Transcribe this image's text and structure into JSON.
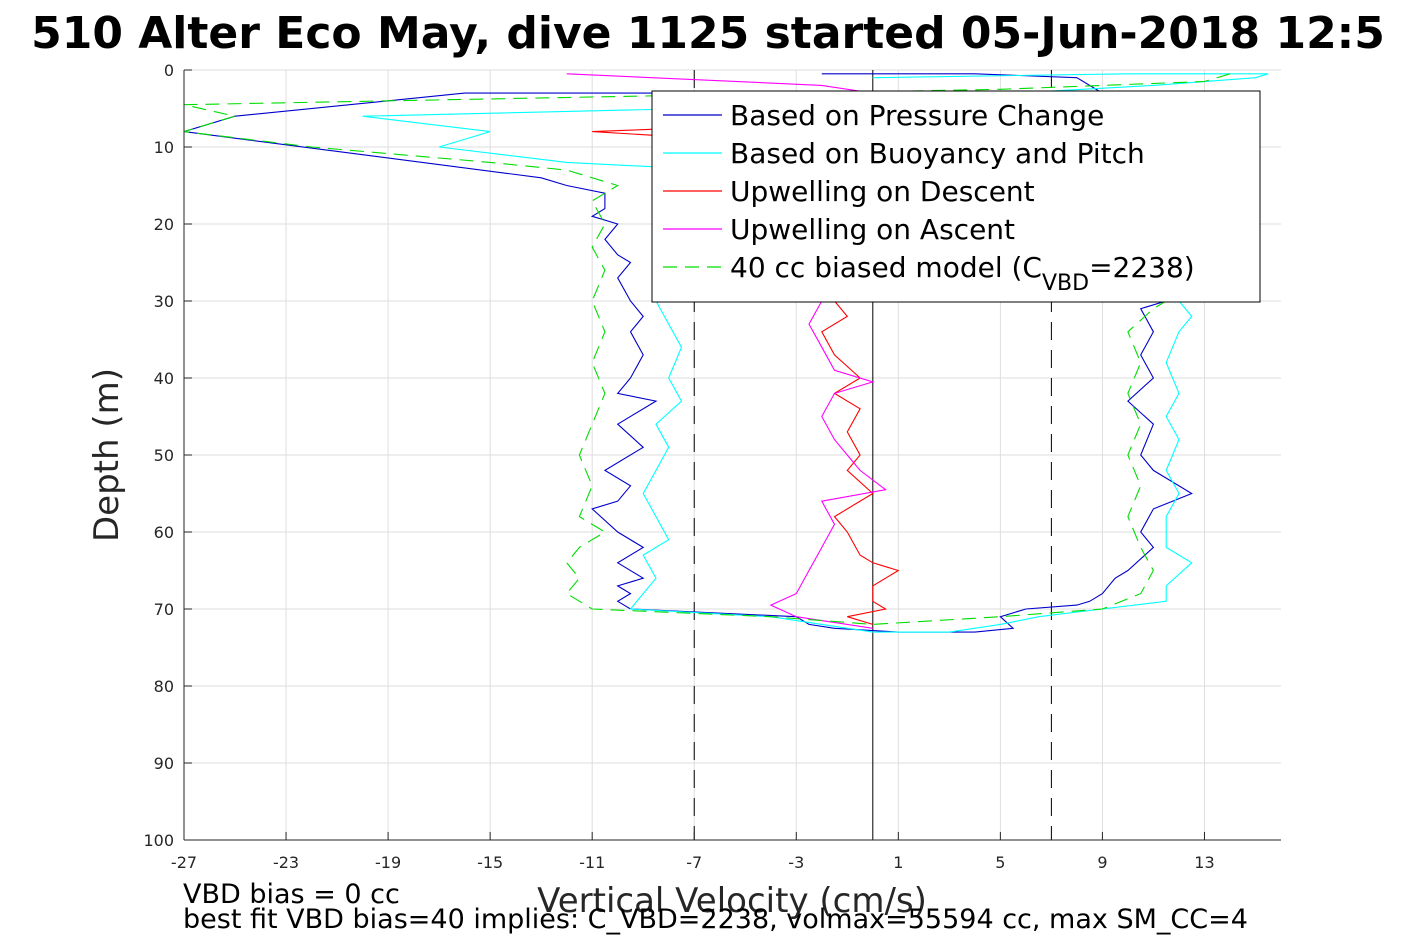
{
  "chart_data": {
    "type": "line",
    "title": "510 Alter Eco May, dive 1125 started 05-Jun-2018 12:5",
    "xlabel": "Vertical Velocity (cm/s)",
    "ylabel": "Depth (m)",
    "xlim": [
      -27,
      16
    ],
    "ylim": [
      0,
      100
    ],
    "y_reversed": true,
    "grid": true,
    "legend_placement": "top-right",
    "x_ticks": [
      "-27",
      "-23",
      "-19",
      "-15",
      "-11",
      "-7",
      "-3",
      "1",
      "5",
      "9",
      "13"
    ],
    "y_ticks": [
      "0",
      "10",
      "20",
      "30",
      "40",
      "50",
      "60",
      "70",
      "80",
      "90",
      "100"
    ],
    "reference_lines": [
      {
        "x": 0,
        "style": "solid",
        "color": "#000000"
      },
      {
        "x": -7,
        "style": "dashed",
        "color": "#000000"
      },
      {
        "x": 7,
        "style": "dashed",
        "color": "#000000"
      }
    ],
    "series": [
      {
        "name": "Based on Pressure Change",
        "color": "#0000cc",
        "style": "solid",
        "points": [
          [
            -2,
            0.5
          ],
          [
            0,
            0.5
          ],
          [
            4,
            0.5
          ],
          [
            8,
            1
          ],
          [
            9,
            3
          ],
          [
            -16,
            3
          ],
          [
            -25,
            6
          ],
          [
            -27,
            8
          ],
          [
            -20,
            11
          ],
          [
            -13,
            14
          ],
          [
            -12,
            15
          ],
          [
            -10.5,
            16
          ],
          [
            -10.5,
            18
          ],
          [
            -11,
            19
          ],
          [
            -10,
            20
          ],
          [
            -10.5,
            22
          ],
          [
            -10,
            24
          ],
          [
            -9.5,
            25
          ],
          [
            -10,
            27
          ],
          [
            -9.5,
            30
          ],
          [
            -9,
            32
          ],
          [
            -9.5,
            34
          ],
          [
            -9,
            37
          ],
          [
            -9.5,
            40
          ],
          [
            -10,
            42
          ],
          [
            -8.5,
            43
          ],
          [
            -10,
            46
          ],
          [
            -9,
            49
          ],
          [
            -10.5,
            52
          ],
          [
            -9.5,
            54
          ],
          [
            -10,
            56
          ],
          [
            -11,
            57
          ],
          [
            -10,
            60
          ],
          [
            -9,
            62
          ],
          [
            -10,
            64
          ],
          [
            -9,
            66
          ],
          [
            -10,
            67
          ],
          [
            -9.5,
            68
          ],
          [
            -10,
            69
          ],
          [
            -9.5,
            70
          ],
          [
            -3,
            71
          ],
          [
            -2.5,
            72
          ],
          [
            -1.5,
            72.5
          ],
          [
            1,
            73
          ],
          [
            4,
            73
          ],
          [
            5.5,
            72.5
          ],
          [
            5,
            71
          ],
          [
            6,
            70
          ],
          [
            8,
            69.5
          ],
          [
            8.5,
            69
          ],
          [
            9,
            68
          ],
          [
            9.5,
            66
          ],
          [
            10,
            65
          ],
          [
            11,
            62
          ],
          [
            10.5,
            60
          ],
          [
            11,
            57
          ],
          [
            12.5,
            55
          ],
          [
            11,
            52
          ],
          [
            10.5,
            50
          ],
          [
            11,
            46
          ],
          [
            10,
            43
          ],
          [
            11,
            40
          ],
          [
            10.5,
            37
          ],
          [
            11,
            34
          ],
          [
            10.5,
            31
          ],
          [
            11.5,
            30
          ]
        ]
      },
      {
        "name": "Based on Buoyancy and Pitch",
        "color": "#00ffff",
        "style": "solid",
        "points": [
          [
            0,
            1
          ],
          [
            10,
            0.5
          ],
          [
            15.5,
            0.5
          ],
          [
            15,
            1
          ],
          [
            11,
            2
          ],
          [
            0,
            4
          ],
          [
            -7,
            5
          ],
          [
            -20,
            6
          ],
          [
            -15,
            8
          ],
          [
            -17,
            10
          ],
          [
            -12,
            12
          ],
          [
            -6,
            13
          ],
          [
            -5,
            15
          ],
          [
            -6,
            17
          ],
          [
            -6,
            20
          ],
          [
            -7.5,
            22
          ],
          [
            -8.5,
            23
          ],
          [
            -8.5,
            25
          ],
          [
            -8,
            27
          ],
          [
            -8.5,
            30
          ],
          [
            -8,
            33
          ],
          [
            -7.5,
            36
          ],
          [
            -8,
            40
          ],
          [
            -7.5,
            43
          ],
          [
            -8.5,
            46
          ],
          [
            -8,
            49
          ],
          [
            -8.5,
            52
          ],
          [
            -9,
            55
          ],
          [
            -8.5,
            58
          ],
          [
            -8,
            61
          ],
          [
            -9,
            63
          ],
          [
            -8.5,
            66
          ],
          [
            -9,
            68
          ],
          [
            -9.5,
            70
          ],
          [
            -4,
            71
          ],
          [
            -2,
            72
          ],
          [
            0,
            73
          ],
          [
            3,
            73
          ],
          [
            5,
            72
          ],
          [
            6.5,
            71
          ],
          [
            9,
            70
          ],
          [
            11.5,
            69
          ],
          [
            11.5,
            67
          ],
          [
            12.5,
            64
          ],
          [
            11.5,
            62
          ],
          [
            11.5,
            58
          ],
          [
            12,
            55
          ],
          [
            11.5,
            52
          ],
          [
            12,
            48
          ],
          [
            11.5,
            45
          ],
          [
            12,
            42
          ],
          [
            11.5,
            38
          ],
          [
            12,
            34
          ],
          [
            12.5,
            32
          ],
          [
            12,
            30
          ]
        ]
      },
      {
        "name": "Upwelling on Descent",
        "color": "#ff0000",
        "style": "solid",
        "points": [
          [
            -4,
            4
          ],
          [
            -2,
            5
          ],
          [
            -3,
            7
          ],
          [
            -11,
            8
          ],
          [
            -6,
            9
          ],
          [
            -7,
            10
          ],
          [
            -1.5,
            30
          ],
          [
            -1,
            32
          ],
          [
            -2,
            34
          ],
          [
            -1.5,
            37
          ],
          [
            -0.5,
            40
          ],
          [
            -1.5,
            42
          ],
          [
            -0.5,
            44
          ],
          [
            -1,
            47
          ],
          [
            -0.5,
            50
          ],
          [
            -1,
            52
          ],
          [
            0,
            55
          ],
          [
            -1.5,
            58
          ],
          [
            -1,
            60
          ],
          [
            -0.5,
            63
          ],
          [
            0,
            64
          ],
          [
            1,
            65
          ],
          [
            0,
            67
          ],
          [
            0,
            69
          ],
          [
            0.5,
            70
          ],
          [
            -1,
            71
          ],
          [
            0,
            72
          ]
        ]
      },
      {
        "name": "Upwelling on Ascent",
        "color": "#ff00ff",
        "style": "solid",
        "points": [
          [
            -12,
            0.5
          ],
          [
            -2,
            2
          ],
          [
            0,
            3
          ],
          [
            -6,
            20
          ],
          [
            -2,
            30
          ],
          [
            -2.5,
            33
          ],
          [
            -2,
            36
          ],
          [
            -1.5,
            39
          ],
          [
            0,
            40.5
          ],
          [
            -1.5,
            42
          ],
          [
            -2,
            45
          ],
          [
            -1.5,
            48
          ],
          [
            -1,
            50
          ],
          [
            -0.5,
            52
          ],
          [
            0.5,
            54.5
          ],
          [
            -2,
            56
          ],
          [
            -1.5,
            59
          ],
          [
            -2,
            62
          ],
          [
            -2.5,
            65
          ],
          [
            -3,
            68
          ],
          [
            -4,
            69.5
          ],
          [
            -3,
            71
          ],
          [
            -1,
            72
          ],
          [
            0,
            72.5
          ]
        ]
      },
      {
        "name": "40 cc biased model (C",
        "name_sub": "VBD",
        "name_suffix": "=2238)",
        "color": "#00dd00",
        "style": "dashed",
        "points": [
          [
            14,
            0.5
          ],
          [
            13,
            1.5
          ],
          [
            5,
            2.5
          ],
          [
            -27,
            4.5
          ],
          [
            -25,
            6
          ],
          [
            -27,
            8
          ],
          [
            -22,
            10
          ],
          [
            -15,
            12
          ],
          [
            -12,
            13
          ],
          [
            -10,
            15
          ],
          [
            -11,
            17
          ],
          [
            -10.5,
            20
          ],
          [
            -11,
            23
          ],
          [
            -10.5,
            26
          ],
          [
            -11,
            30
          ],
          [
            -10.5,
            34
          ],
          [
            -11,
            38
          ],
          [
            -10.5,
            42
          ],
          [
            -11,
            46
          ],
          [
            -11.5,
            50
          ],
          [
            -11,
            54
          ],
          [
            -11.5,
            58
          ],
          [
            -10.5,
            60
          ],
          [
            -11.5,
            62
          ],
          [
            -12,
            64
          ],
          [
            -11.5,
            66
          ],
          [
            -12,
            68
          ],
          [
            -11,
            70
          ],
          [
            -4,
            71
          ],
          [
            0,
            72
          ],
          [
            5,
            71
          ],
          [
            9,
            70
          ],
          [
            10.5,
            68
          ],
          [
            11,
            65
          ],
          [
            10.5,
            62
          ],
          [
            10,
            58
          ],
          [
            10.5,
            54
          ],
          [
            10,
            50
          ],
          [
            10.5,
            46
          ],
          [
            10,
            42
          ],
          [
            10.5,
            38
          ],
          [
            10,
            34
          ],
          [
            11,
            31
          ],
          [
            11.5,
            30
          ]
        ]
      }
    ],
    "annotations": [
      "VBD bias = 0 cc",
      "best fit VBD bias=40 implies: C_VBD=2238, volmax=55594 cc, max SM_CC=4"
    ]
  }
}
